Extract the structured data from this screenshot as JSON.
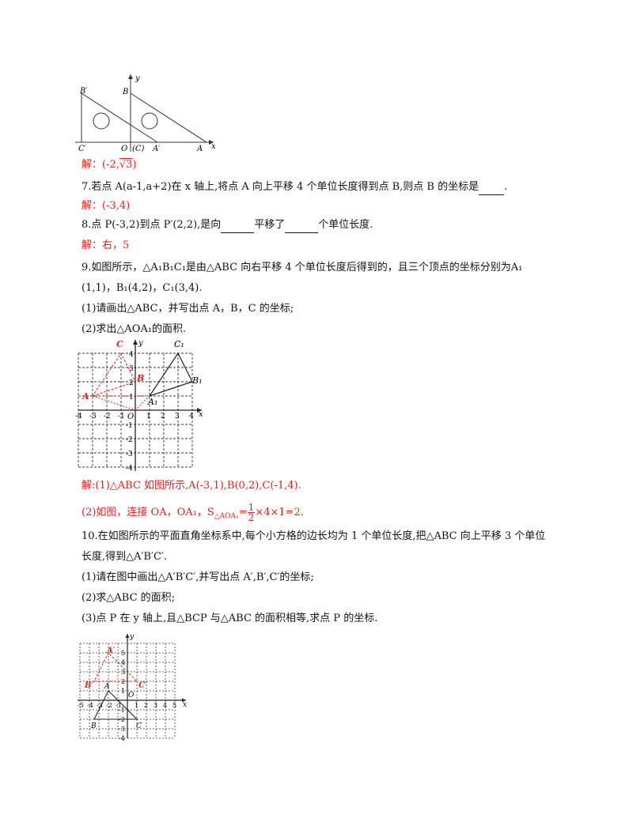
{
  "fig_top": {
    "labels": {
      "b_prime": "B′",
      "b": "B",
      "y": "y",
      "c_prime": "C′",
      "o": "O",
      "c": "(C)",
      "a_prime": "A′",
      "a": "A",
      "x": "x"
    }
  },
  "ans6": {
    "prefix": "解：",
    "value": "(-2,",
    "sqrt": "√3",
    "close": ")"
  },
  "q7": {
    "text": "7.若点 A(a-1,a+2)在 x 轴上,将点 A 向上平移 4 个单位长度得到点 B,则点 B 的坐标是",
    "end": "."
  },
  "ans7": {
    "prefix": "解：",
    "value": "(-3,4)"
  },
  "q8": {
    "text_a": "8.点 P(-3,2)到点 P′(2,2),是向",
    "text_b": "平移了",
    "text_c": "个单位长度."
  },
  "ans8": {
    "text": "解：右，5"
  },
  "q9": {
    "line1": "9.如图所示，△A₁B₁C₁是由△ABC 向右平移 4 个单位长度后得到的，且三个顶点的坐标分别为A₁",
    "line2": "(1,1)，B₁(4,2)，C₁(3,4).",
    "sub1": "(1)请画出△ABC，并写出点 A，B，C 的坐标;",
    "sub2": "(2)求出△AOA₁的面积."
  },
  "fig9": {
    "labels": {
      "c": "C",
      "c1": "C₁",
      "y": "y",
      "b": "B",
      "b1": "B₁",
      "a": "A",
      "a1": "A₁",
      "o": "O",
      "x": "x"
    },
    "xticks": [
      "-4",
      "-3",
      "-2",
      "-1",
      "1",
      "2",
      "3",
      "4"
    ],
    "yticks": [
      "4",
      "3",
      "2",
      "1",
      "-1",
      "-2",
      "-3",
      "-4"
    ]
  },
  "ans9": {
    "line1": "解:(1)△ABC 如图所示,A(-3,1),B(0,2),C(-1,4).",
    "line2_a": "(2)如图，连接 OA，OA₁，S",
    "line2_sub": "△AOA₁",
    "line2_eq": "=",
    "frac_num": "1",
    "frac_den": "2",
    "line2_b": "×4×1=2."
  },
  "q10": {
    "line1": "10.在如图所示的平面直角坐标系中,每个小方格的边长均为 1 个单位长度,把△ABC 向上平移 3 个单位",
    "line2": "长度,得到△A′B′C′.",
    "sub1": "(1)请在图中画出△A′B′C′,并写出点 A′,B′,C′的坐标;",
    "sub2": "(2)求△ABC 的面积;",
    "sub3": "(3)点 P 在 y 轴上,且△BCP 与△ABC 的面积相等,求点 P 的坐标."
  },
  "fig10": {
    "labels": {
      "y": "y",
      "a_prime": "A′",
      "b_prime": "B′",
      "c_prime": "C′",
      "a": "A",
      "b": "B",
      "c": "C",
      "o": "O",
      "x": "x"
    },
    "xticks": [
      "-5",
      "-4",
      "-3",
      "-2",
      "-1",
      "1",
      "2",
      "3",
      "4",
      "5"
    ],
    "yticks": [
      "5",
      "4",
      "3",
      "2",
      "1",
      "-1",
      "-2",
      "-3",
      "-4"
    ]
  },
  "colors": {
    "answer": "#e0201e",
    "text": "#111111"
  }
}
